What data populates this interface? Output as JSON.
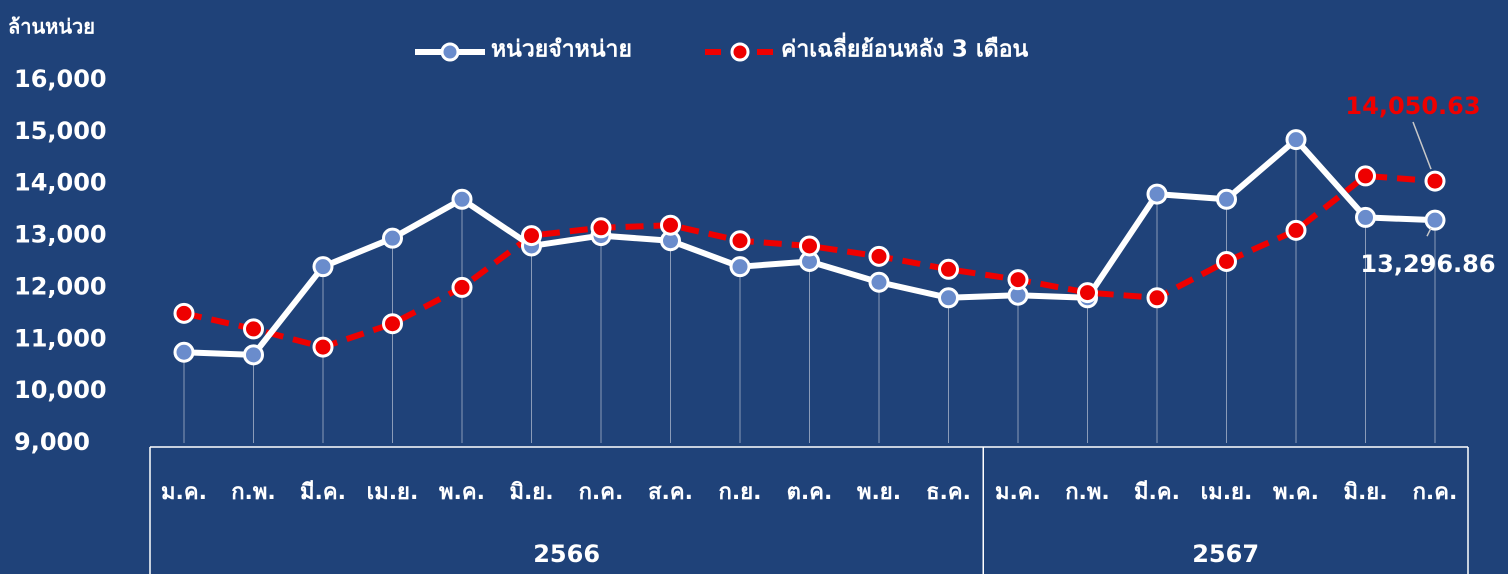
{
  "chart_data": {
    "type": "line",
    "y_label": "ล้านหน่วย",
    "categories": [
      "ม.ค.",
      "ก.พ.",
      "มี.ค.",
      "เม.ย.",
      "พ.ค.",
      "มิ.ย.",
      "ก.ค.",
      "ส.ค.",
      "ก.ย.",
      "ต.ค.",
      "พ.ย.",
      "ธ.ค.",
      "ม.ค.",
      "ก.พ.",
      "มี.ค.",
      "เม.ย.",
      "พ.ค.",
      "มิ.ย.",
      "ก.ค."
    ],
    "year_groups": [
      {
        "label": "2566",
        "span": 12
      },
      {
        "label": "2567",
        "span": 7
      }
    ],
    "series": [
      {
        "name": "หน่วยจำหน่าย",
        "color": "#ffffff",
        "marker_color": "#6a8ccc",
        "dash": false,
        "values": [
          10750,
          10700,
          12400,
          12950,
          13700,
          12800,
          13000,
          12900,
          12400,
          12500,
          12100,
          11800,
          11850,
          11800,
          13800,
          13700,
          14850,
          13350,
          13296.86
        ],
        "value_labels": [
          null,
          null,
          null,
          null,
          null,
          null,
          null,
          null,
          null,
          null,
          null,
          null,
          null,
          null,
          null,
          null,
          null,
          null,
          "13,296.86"
        ]
      },
      {
        "name": "ค่าเฉลี่ยย้อนหลัง 3 เดือน",
        "color": "#ee0000",
        "marker_color": "#ee0000",
        "dash": true,
        "values": [
          11500,
          11200,
          10850,
          11300,
          12000,
          13000,
          13150,
          13200,
          12900,
          12800,
          12600,
          12350,
          12150,
          11900,
          11800,
          12500,
          13100,
          14150,
          14050.63
        ],
        "value_labels": [
          null,
          null,
          null,
          null,
          null,
          null,
          null,
          null,
          null,
          null,
          null,
          null,
          null,
          null,
          null,
          null,
          null,
          null,
          "14,050.63"
        ]
      }
    ],
    "ylim": [
      9000,
      16000
    ],
    "yticks": [
      {
        "value": 9000,
        "label": "9,000"
      },
      {
        "value": 10000,
        "label": "10,000"
      },
      {
        "value": 11000,
        "label": "11,000"
      },
      {
        "value": 12000,
        "label": "12,000"
      },
      {
        "value": 13000,
        "label": "13,000"
      },
      {
        "value": 14000,
        "label": "14,000"
      },
      {
        "value": 15000,
        "label": "15,000"
      },
      {
        "value": 16000,
        "label": "16,000"
      }
    ],
    "legend": "top"
  }
}
